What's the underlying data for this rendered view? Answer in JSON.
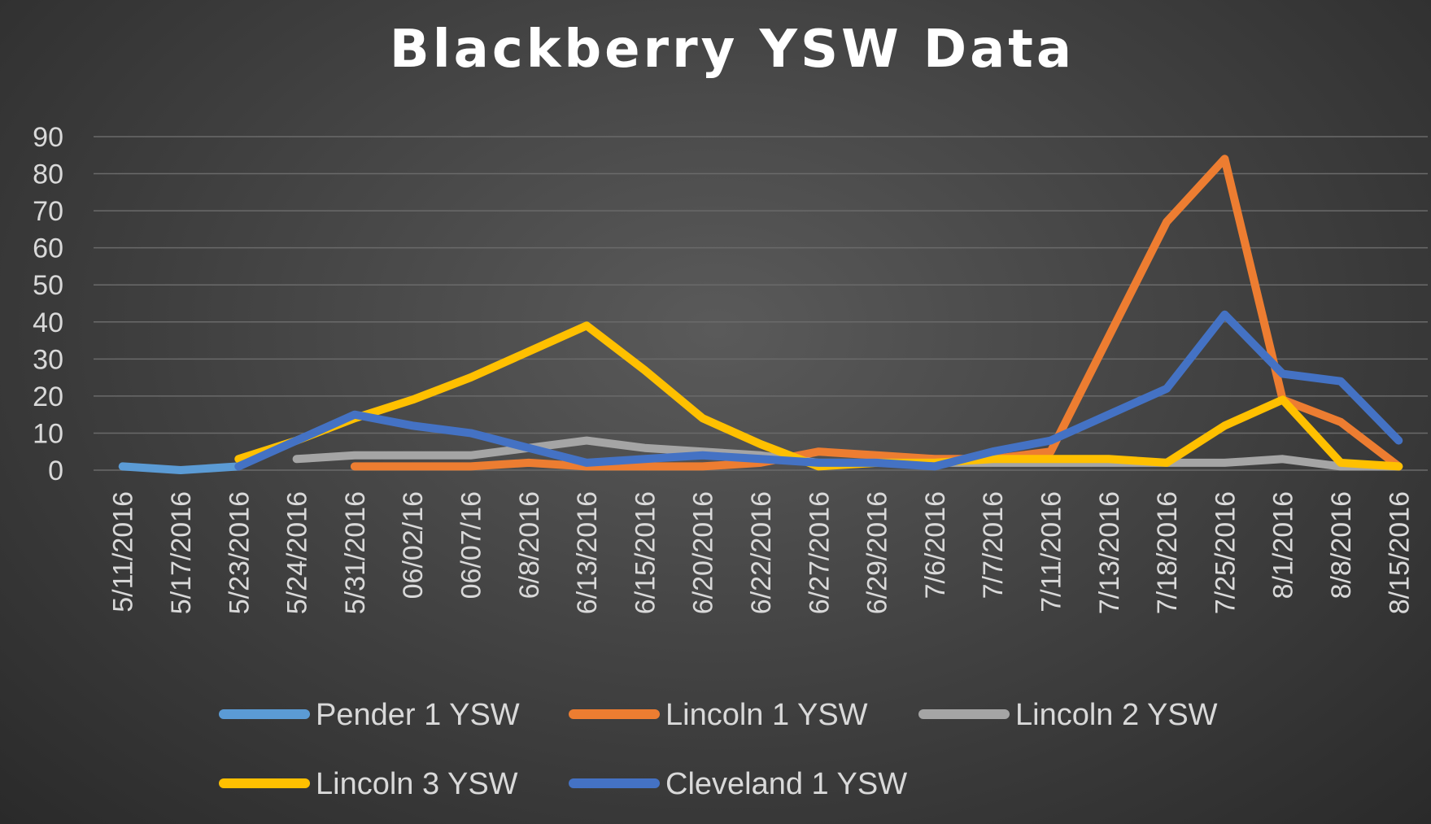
{
  "chart_data": {
    "type": "line",
    "title": "Blackberry YSW Data",
    "xlabel": "",
    "ylabel": "",
    "ylim": [
      0,
      90
    ],
    "yticks": [
      0,
      10,
      20,
      30,
      40,
      50,
      60,
      70,
      80,
      90
    ],
    "grid": true,
    "legend_position": "bottom",
    "categories": [
      "5/11/2016",
      "5/17/2016",
      "5/23/2016",
      "5/24/2016",
      "5/31/2016",
      "06/02/16",
      "06/07/16",
      "6/8/2016",
      "6/13/2016",
      "6/15/2016",
      "6/20/2016",
      "6/22/2016",
      "6/27/2016",
      "6/29/2016",
      "7/6/2016",
      "7/7/2016",
      "7/11/2016",
      "7/13/2016",
      "7/18/2016",
      "7/25/2016",
      "8/1/2016",
      "8/8/2016",
      "8/15/2016"
    ],
    "series": [
      {
        "name": "Pender 1 YSW",
        "color": "#5b9bd5",
        "values": [
          1,
          0,
          1,
          null,
          null,
          null,
          null,
          null,
          null,
          null,
          null,
          null,
          null,
          null,
          null,
          null,
          null,
          null,
          null,
          null,
          null,
          null,
          null
        ]
      },
      {
        "name": "Lincoln 1 YSW",
        "color": "#ed7d31",
        "values": [
          null,
          null,
          null,
          null,
          1,
          1,
          1,
          2,
          1,
          1,
          1,
          2,
          5,
          4,
          3,
          3,
          5,
          36,
          67,
          84,
          19,
          13,
          1
        ]
      },
      {
        "name": "Lincoln 2 YSW",
        "color": "#a5a5a5",
        "values": [
          null,
          null,
          null,
          3,
          4,
          4,
          4,
          6,
          8,
          6,
          5,
          4,
          2,
          2,
          2,
          2,
          2,
          2,
          2,
          2,
          3,
          1,
          1
        ]
      },
      {
        "name": "Lincoln 3 YSW",
        "color": "#ffc000",
        "values": [
          null,
          null,
          3,
          8,
          14,
          19,
          25,
          32,
          39,
          27,
          14,
          7,
          1,
          2,
          2,
          3,
          3,
          3,
          2,
          12,
          19,
          2,
          1
        ]
      },
      {
        "name": "Cleveland 1 YSW",
        "color": "#4472c4",
        "values": [
          null,
          null,
          1,
          8,
          15,
          12,
          10,
          6,
          2,
          3,
          4,
          3,
          2,
          2,
          1,
          5,
          8,
          15,
          22,
          42,
          26,
          24,
          8
        ]
      }
    ]
  }
}
